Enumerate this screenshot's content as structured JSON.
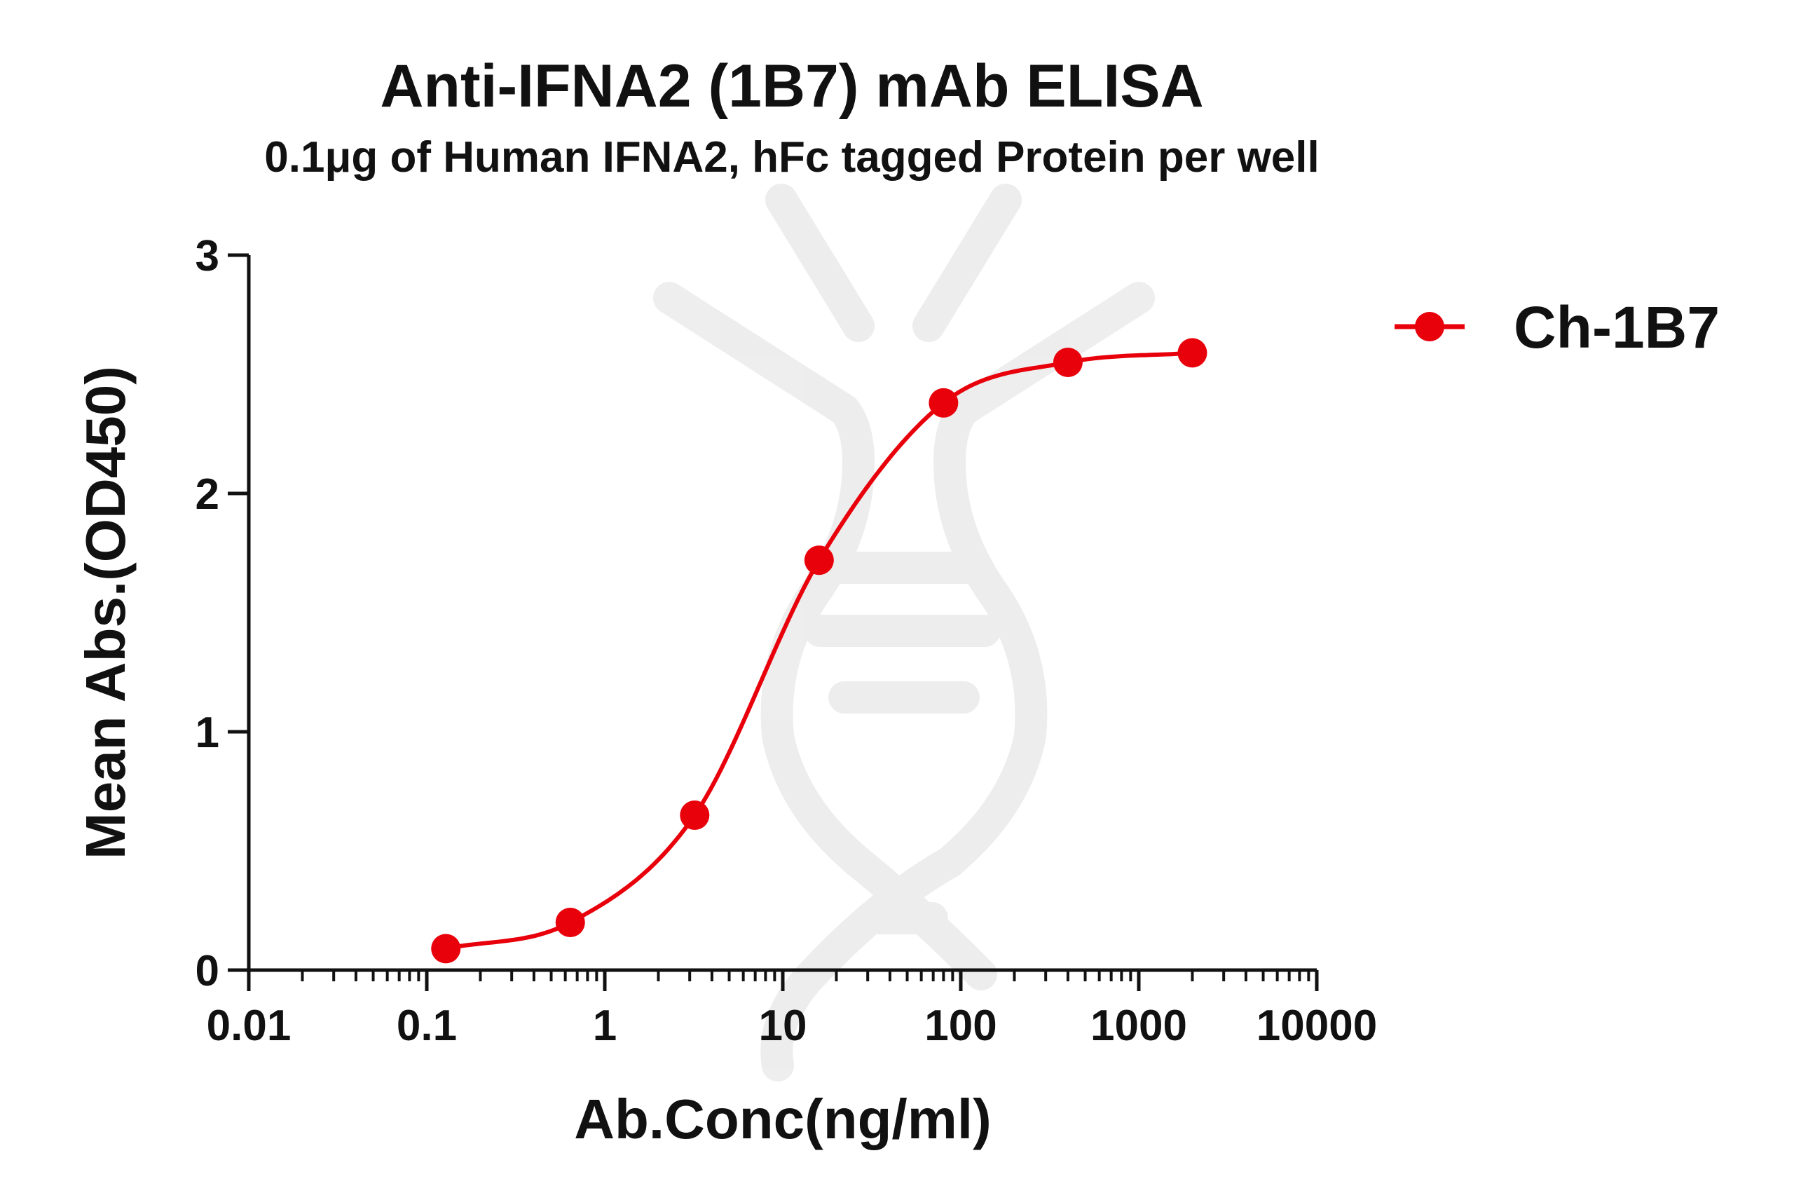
{
  "chart_data": {
    "type": "scatter",
    "title": "Anti-IFNA2 (1B7) mAb ELISA",
    "subtitle": "0.1μg of Human IFNA2, hFc tagged Protein per well",
    "xlabel": "Ab.Conc(ng/ml)",
    "ylabel": "Mean Abs.(OD450)",
    "xscale": "log",
    "xlim": [
      0.01,
      10000
    ],
    "ylim": [
      0,
      3
    ],
    "x_ticks": [
      0.01,
      0.1,
      1,
      10,
      100,
      1000,
      10000
    ],
    "x_tick_labels": [
      "0.01",
      "0.1",
      "1",
      "10",
      "100",
      "1000",
      "10000"
    ],
    "y_ticks": [
      0,
      1,
      2,
      3
    ],
    "y_tick_labels": [
      "0",
      "1",
      "2",
      "3"
    ],
    "legend_position": "top-right",
    "series": [
      {
        "name": "Ch-1B7",
        "color": "#e8000b",
        "marker": "circle",
        "fit": "sigmoidal",
        "x": [
          0.128,
          0.64,
          3.2,
          16,
          80,
          400,
          2000
        ],
        "y": [
          0.09,
          0.2,
          0.65,
          1.72,
          2.38,
          2.55,
          2.59
        ]
      }
    ]
  }
}
